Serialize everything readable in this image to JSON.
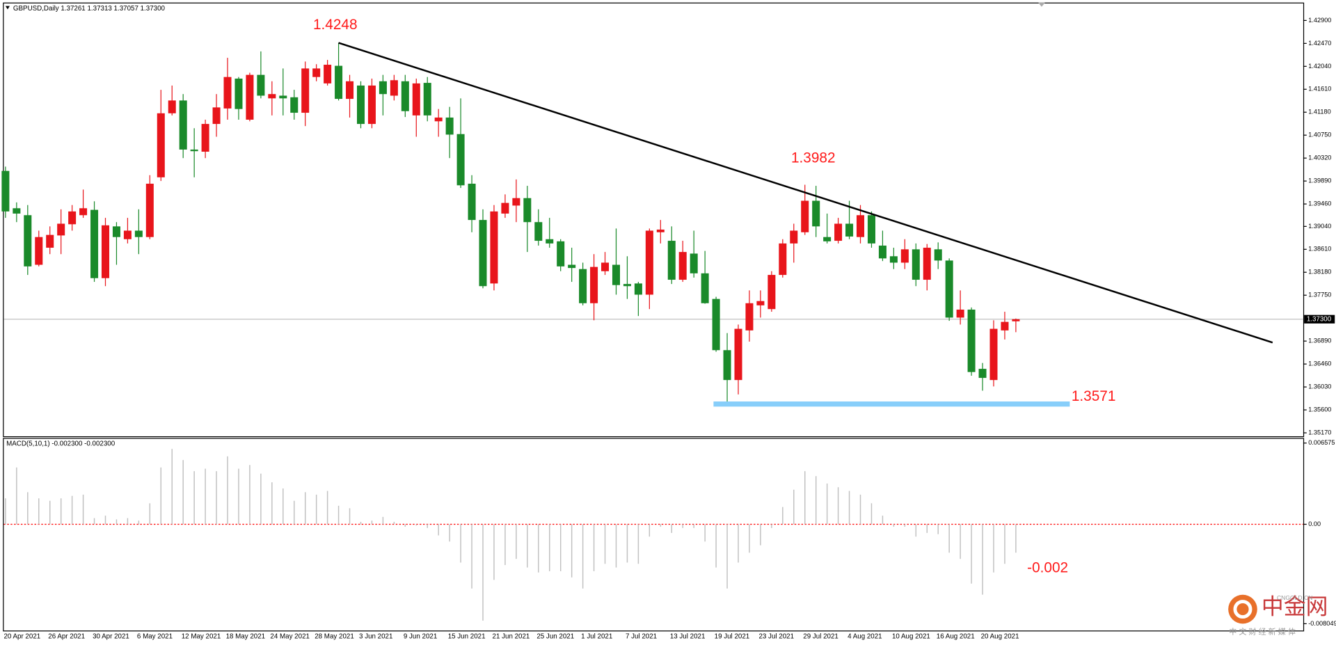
{
  "chart_data": [
    {
      "type": "candlestick",
      "title": "GBPUSD,Daily 1.37261 1.37313 1.37057 1.37300",
      "up_color": "#e8151b",
      "down_color": "#1a8a2a",
      "categories": [
        "20 Apr 2021",
        null,
        null,
        null,
        "26 Apr 2021",
        null,
        null,
        null,
        "30 Apr 2021",
        null,
        null,
        null,
        "6 May 2021",
        null,
        null,
        null,
        "12 May 2021",
        null,
        null,
        null,
        "18 May 2021",
        null,
        null,
        null,
        "24 May 2021",
        null,
        null,
        null,
        "28 May 2021",
        null,
        null,
        null,
        "3 Jun 2021",
        null,
        null,
        null,
        "9 Jun 2021",
        null,
        null,
        null,
        "15 Jun 2021",
        null,
        null,
        null,
        "21 Jun 2021",
        null,
        null,
        null,
        "25 Jun 2021",
        null,
        null,
        null,
        "1 Jul 2021",
        null,
        null,
        null,
        "7 Jul 2021",
        null,
        null,
        null,
        "13 Jul 2021",
        null,
        null,
        null,
        "19 Jul 2021",
        null,
        null,
        null,
        "23 Jul 2021",
        null,
        null,
        null,
        "29 Jul 2021",
        null,
        null,
        null,
        "4 Aug 2021",
        null,
        null,
        null,
        "10 Aug 2021",
        null,
        null,
        null,
        "16 Aug 2021",
        null,
        null,
        null,
        "20 Aug 2021",
        null,
        null,
        null
      ],
      "open": [
        1.4008,
        1.3938,
        1.3925,
        1.3832,
        1.3864,
        1.3887,
        1.3908,
        1.3925,
        1.3935,
        1.3807,
        1.3904,
        1.388,
        1.3896,
        1.3884,
        1.3996,
        1.4116,
        1.414,
        1.4048,
        1.4044,
        1.4096,
        1.4125,
        1.4181,
        1.4104,
        1.4188,
        1.4144,
        1.4149,
        1.4146,
        1.4117,
        1.4184,
        1.4172,
        1.4205,
        1.4143,
        1.4168,
        1.4096,
        1.4176,
        1.4149,
        1.4176,
        1.4112,
        1.4173,
        1.4101,
        1.4108,
        1.4077,
        1.3984,
        1.3916,
        1.3797,
        1.3928,
        1.3943,
        1.3957,
        1.3912,
        1.388,
        1.3876,
        1.3832,
        1.3824,
        1.376,
        1.382,
        1.3832,
        1.3796,
        1.3797,
        1.3776,
        1.3893,
        1.3877,
        1.3804,
        1.3853,
        1.3816,
        1.3768,
        1.3672,
        1.3616,
        1.3709,
        1.3756,
        1.3749,
        1.3813,
        1.3872,
        1.3893,
        1.3952,
        1.3884,
        1.3877,
        1.3909,
        1.3884,
        1.3925,
        1.3868,
        1.3848,
        1.3836,
        1.3861,
        1.3804,
        1.3861,
        1.384,
        1.3733,
        1.3748,
        1.3637,
        1.3616,
        1.3709,
        1.37261
      ],
      "high": [
        1.4016,
        1.3949,
        1.3944,
        1.3896,
        1.3904,
        1.3936,
        1.3944,
        1.3973,
        1.3951,
        1.392,
        1.3912,
        1.392,
        1.3936,
        1.4,
        1.416,
        1.4168,
        1.4152,
        1.4088,
        1.4104,
        1.4152,
        1.422,
        1.4184,
        1.4192,
        1.4232,
        1.4176,
        1.42,
        1.416,
        1.4213,
        1.4208,
        1.4216,
        1.4248,
        1.4188,
        1.4176,
        1.4181,
        1.4188,
        1.4188,
        1.4188,
        1.4181,
        1.4184,
        1.4124,
        1.4128,
        1.4144,
        1.4,
        1.3936,
        1.3944,
        1.3964,
        1.3992,
        1.398,
        1.3936,
        1.392,
        1.388,
        1.3864,
        1.3836,
        1.3852,
        1.3856,
        1.39,
        1.3848,
        1.38,
        1.39,
        1.3916,
        1.3904,
        1.3877,
        1.3896,
        1.3858,
        1.3772,
        1.3704,
        1.372,
        1.3784,
        1.3784,
        1.382,
        1.388,
        1.3909,
        1.3982,
        1.398,
        1.3928,
        1.392,
        1.3952,
        1.3944,
        1.3932,
        1.3896,
        1.3864,
        1.388,
        1.3872,
        1.3871,
        1.3874,
        1.3844,
        1.3784,
        1.3752,
        1.3648,
        1.3728,
        1.3744,
        1.37313
      ],
      "low": [
        1.392,
        1.3912,
        1.3813,
        1.3829,
        1.3852,
        1.3852,
        1.3896,
        1.392,
        1.38,
        1.3792,
        1.3832,
        1.3872,
        1.3852,
        1.388,
        1.3989,
        1.4112,
        1.4032,
        1.3996,
        1.4032,
        1.4072,
        1.4104,
        1.4104,
        1.4101,
        1.4144,
        1.4112,
        1.4112,
        1.4104,
        1.4092,
        1.4176,
        1.4168,
        1.414,
        1.4108,
        1.4088,
        1.4088,
        1.4112,
        1.414,
        1.4109,
        1.4072,
        1.4101,
        1.4072,
        1.4032,
        1.3976,
        1.3893,
        1.3788,
        1.3784,
        1.392,
        1.3912,
        1.3856,
        1.3868,
        1.3864,
        1.382,
        1.38,
        1.3756,
        1.3728,
        1.3813,
        1.3776,
        1.3768,
        1.3736,
        1.3749,
        1.3872,
        1.3796,
        1.38,
        1.3808,
        1.3759,
        1.3669,
        1.3571,
        1.3589,
        1.3688,
        1.3733,
        1.3744,
        1.3808,
        1.3836,
        1.3888,
        1.3884,
        1.3872,
        1.3872,
        1.388,
        1.3872,
        1.3864,
        1.3839,
        1.3824,
        1.3824,
        1.3792,
        1.3784,
        1.3824,
        1.3727,
        1.372,
        1.3624,
        1.3596,
        1.3604,
        1.3692,
        1.37057
      ],
      "close": [
        1.3932,
        1.3928,
        1.3829,
        1.3884,
        1.3888,
        1.3909,
        1.3932,
        1.3938,
        1.3807,
        1.3906,
        1.3884,
        1.3896,
        1.3884,
        1.3984,
        1.4116,
        1.414,
        1.4048,
        1.4045,
        1.4096,
        1.4127,
        1.4184,
        1.4124,
        1.4188,
        1.4149,
        1.4152,
        1.4144,
        1.4117,
        1.42,
        1.42,
        1.4207,
        1.4143,
        1.4176,
        1.4096,
        1.4168,
        1.4152,
        1.4178,
        1.412,
        1.4172,
        1.4112,
        1.4108,
        1.4076,
        1.3981,
        1.3916,
        1.3792,
        1.3932,
        1.3948,
        1.3957,
        1.3912,
        1.3877,
        1.3872,
        1.3829,
        1.3826,
        1.376,
        1.3828,
        1.3836,
        1.3794,
        1.3792,
        1.3776,
        1.3896,
        1.3898,
        1.3804,
        1.3856,
        1.3816,
        1.376,
        1.3672,
        1.3616,
        1.3712,
        1.376,
        1.3764,
        1.3813,
        1.3872,
        1.3896,
        1.3952,
        1.3904,
        1.3876,
        1.3909,
        1.3885,
        1.3925,
        1.3872,
        1.3844,
        1.3836,
        1.3861,
        1.3804,
        1.3864,
        1.384,
        1.3733,
        1.3748,
        1.3631,
        1.362,
        1.3712,
        1.3725,
        1.373
      ],
      "ylim": [
        1.3517,
        1.429
      ],
      "yticks": [
        {
          "value": 1.429,
          "label": "1.42900"
        },
        {
          "value": 1.4247,
          "label": "1.42470"
        },
        {
          "value": 1.4204,
          "label": "1.42040"
        },
        {
          "value": 1.4161,
          "label": "1.41610"
        },
        {
          "value": 1.4118,
          "label": "1.41180"
        },
        {
          "value": 1.4075,
          "label": "1.40750"
        },
        {
          "value": 1.4032,
          "label": "1.40320"
        },
        {
          "value": 1.3989,
          "label": "1.39890"
        },
        {
          "value": 1.3946,
          "label": "1.39460"
        },
        {
          "value": 1.3904,
          "label": "1.39040"
        },
        {
          "value": 1.3861,
          "label": "1.38610"
        },
        {
          "value": 1.3818,
          "label": "1.38180"
        },
        {
          "value": 1.3775,
          "label": "1.37750"
        },
        {
          "value": 1.3689,
          "label": "1.36890"
        },
        {
          "value": 1.3646,
          "label": "1.36460"
        },
        {
          "value": 1.3603,
          "label": "1.36030"
        },
        {
          "value": 1.356,
          "label": "1.35600"
        },
        {
          "value": 1.3517,
          "label": "1.35170"
        }
      ],
      "last_price": {
        "value": 1.373,
        "label": "1.37300"
      },
      "annotations": [
        "1.4248",
        "1.3982",
        "1.3571"
      ],
      "annotation_color": "#ff1a1a"
    },
    {
      "type": "bar",
      "title": "MACD(5,10,1) -0.002300 -0.002300",
      "color": "#c0c0c0",
      "values": [
        0.0021,
        0.0046,
        0.0026,
        0.0021,
        0.0019,
        0.0021,
        0.0023,
        0.0024,
        0.0005,
        0.0007,
        0.0004,
        0.0005,
        0.0003,
        0.0017,
        0.0046,
        0.0061,
        0.0052,
        0.0043,
        0.0045,
        0.0043,
        0.0055,
        0.0045,
        0.0048,
        0.0041,
        0.0034,
        0.0029,
        0.0019,
        0.0026,
        0.0024,
        0.0027,
        0.0015,
        0.0013,
        0.0002,
        0.0003,
        0.0006,
        0.0002,
        -0.0002,
        -0.0001,
        -0.0003,
        -0.0009,
        -0.0014,
        -0.0031,
        -0.0052,
        -0.0078,
        -0.0045,
        -0.0033,
        -0.0028,
        -0.0035,
        -0.0039,
        -0.0038,
        -0.0038,
        -0.0043,
        -0.0052,
        -0.0038,
        -0.0032,
        -0.0035,
        -0.0031,
        -0.0032,
        -0.001,
        -0.0002,
        -0.0007,
        -0.0003,
        -0.0003,
        -0.0014,
        -0.0035,
        -0.0052,
        -0.0031,
        -0.0023,
        -0.0017,
        -0.0003,
        0.0014,
        0.0028,
        0.0043,
        0.0039,
        0.0033,
        0.003,
        0.0027,
        0.0024,
        0.0017,
        0.0007,
        -0.0002,
        -0.0002,
        -0.001,
        -0.0007,
        -0.0008,
        -0.0023,
        -0.0028,
        -0.0048,
        -0.0057,
        -0.0039,
        -0.0032,
        -0.0023
      ],
      "ylim": [
        -0.008049,
        0.006575
      ],
      "yticks": [
        -0.008049,
        {
          "value": 0,
          "label": "0.00"
        },
        0.006575
      ],
      "annotations": [
        "-0.002"
      ],
      "annotation_color": "#ff1a1a"
    }
  ],
  "watermark": {
    "name": "中金网",
    "site": "CNGOLD.CN",
    "tagline": "中 文 财 经 新 媒 体"
  }
}
